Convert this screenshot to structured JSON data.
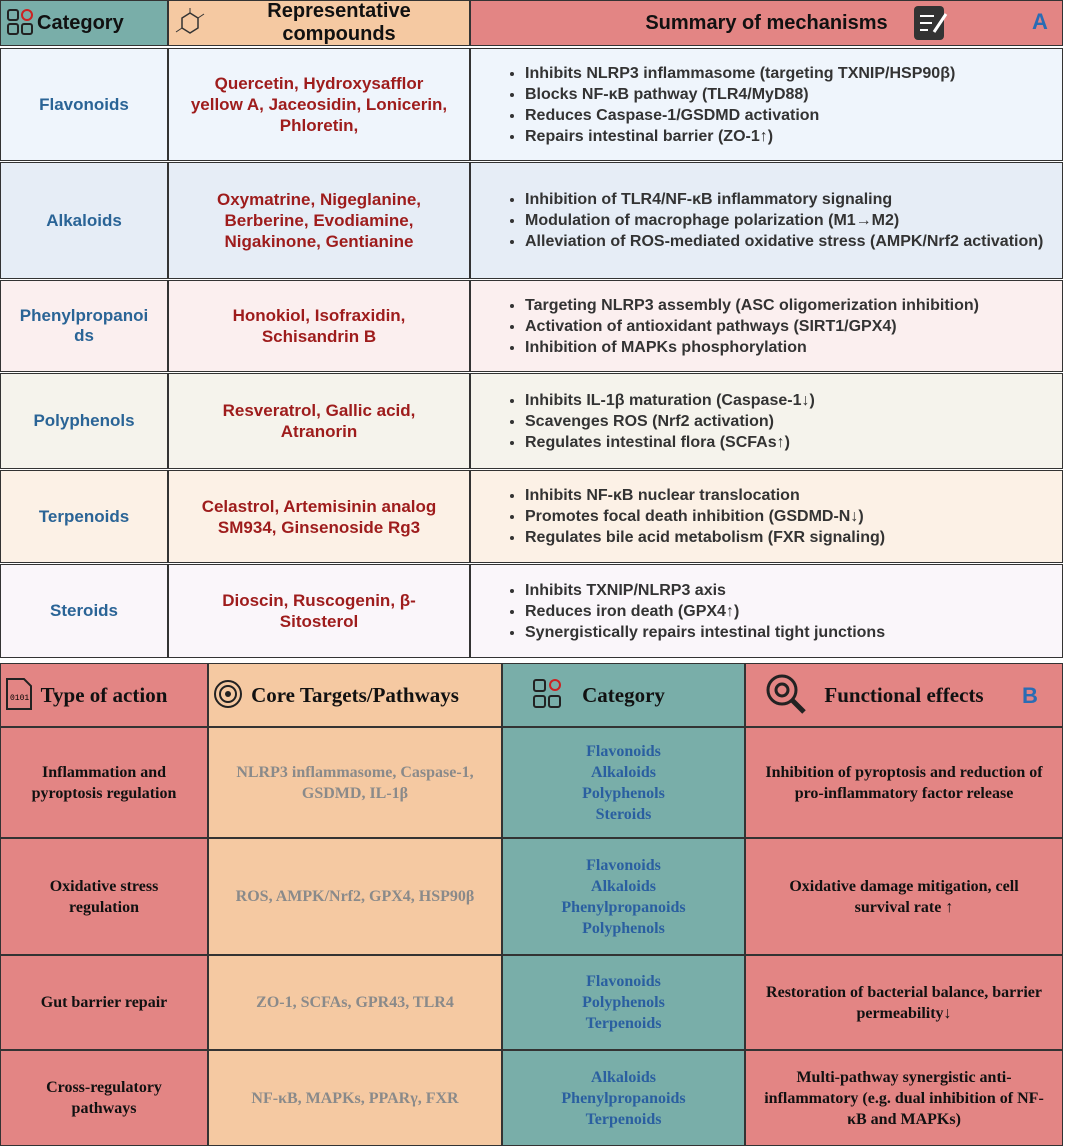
{
  "table_a": {
    "label": "A",
    "header": [
      "Category",
      "Representative compounds",
      "Summary of mechanisms"
    ],
    "rows": [
      {
        "category": "Flavonoids",
        "compounds": "Quercetin, Hydroxysafflor yellow A, Jaceosidin, Lonicerin, Phloretin,",
        "mechanisms": [
          "Inhibits NLRP3 inflammasome (targeting TXNIP/HSP90β)",
          "Blocks NF-κB pathway (TLR4/MyD88)",
          "Reduces Caspase-1/GSDMD activation",
          "Repairs intestinal barrier (ZO-1↑)"
        ]
      },
      {
        "category": "Alkaloids",
        "compounds": "Oxymatrine, Nigeglanine, Berberine, Evodiamine, Nigakinone, Gentianine",
        "mechanisms": [
          "Inhibition of TLR4/NF-κB inflammatory signaling",
          "Modulation of macrophage polarization (M1→M2)",
          "Alleviation of ROS-mediated oxidative stress (AMPK/Nrf2 activation)"
        ]
      },
      {
        "category": "Phenylpropanoids",
        "compounds": "Honokiol, Isofraxidin, Schisandrin B",
        "mechanisms": [
          "Targeting NLRP3 assembly (ASC oligomerization inhibition)",
          "Activation of antioxidant pathways (SIRT1/GPX4)",
          "Inhibition of MAPKs phosphorylation"
        ]
      },
      {
        "category": "Polyphenols",
        "compounds": "Resveratrol, Gallic acid, Atranorin",
        "mechanisms": [
          "Inhibits IL-1β maturation (Caspase-1↓)",
          "Scavenges ROS (Nrf2 activation)",
          "Regulates intestinal flora (SCFAs↑)"
        ]
      },
      {
        "category": "Terpenoids",
        "compounds": "Celastrol, Artemisinin analog SM934, Ginsenoside Rg3",
        "mechanisms": [
          "Inhibits NF-κB nuclear translocation",
          "Promotes focal death inhibition (GSDMD-N↓)",
          "Regulates bile acid metabolism (FXR signaling)"
        ]
      },
      {
        "category": "Steroids",
        "compounds": "Dioscin, Ruscogenin, β-Sitosterol",
        "mechanisms": [
          "Inhibits TXNIP/NLRP3 axis",
          "Reduces iron death (GPX4↑)",
          "Synergistically repairs intestinal tight junctions"
        ]
      }
    ]
  },
  "table_b": {
    "label": "B",
    "header": [
      "Type of action",
      "Core Targets/Pathways",
      "Category",
      "Functional effects"
    ],
    "rows": [
      {
        "type": "Inflammation and pyroptosis regulation",
        "targets": "NLRP3 inflammasome, Caspase-1, GSDMD, IL-1β",
        "categories": [
          "Flavonoids",
          "Alkaloids",
          "Polyphenols",
          "Steroids"
        ],
        "effects": "Inhibition of pyroptosis and reduction of pro-inflammatory factor release"
      },
      {
        "type": "Oxidative stress regulation",
        "targets": "ROS, AMPK/Nrf2, GPX4, HSP90β",
        "categories": [
          "Flavonoids",
          "Alkaloids",
          "Phenylpropanoids",
          "Polyphenols"
        ],
        "effects": "Oxidative damage mitigation, cell survival rate ↑"
      },
      {
        "type": "Gut barrier repair",
        "targets": "ZO-1, SCFAs, GPR43, TLR4",
        "categories": [
          "Flavonoids",
          "Polyphenols",
          "Terpenoids"
        ],
        "effects": "Restoration of bacterial balance, barrier permeability↓"
      },
      {
        "type": "Cross-regulatory pathways",
        "targets": "NF-κB, MAPKs, PPARγ, FXR",
        "categories": [
          "Alkaloids",
          "Phenylpropanoids",
          "Terpenoids"
        ],
        "effects": "Multi-pathway synergistic anti-inflammatory (e.g. dual inhibition of NF-κB and MAPKs)"
      }
    ]
  }
}
